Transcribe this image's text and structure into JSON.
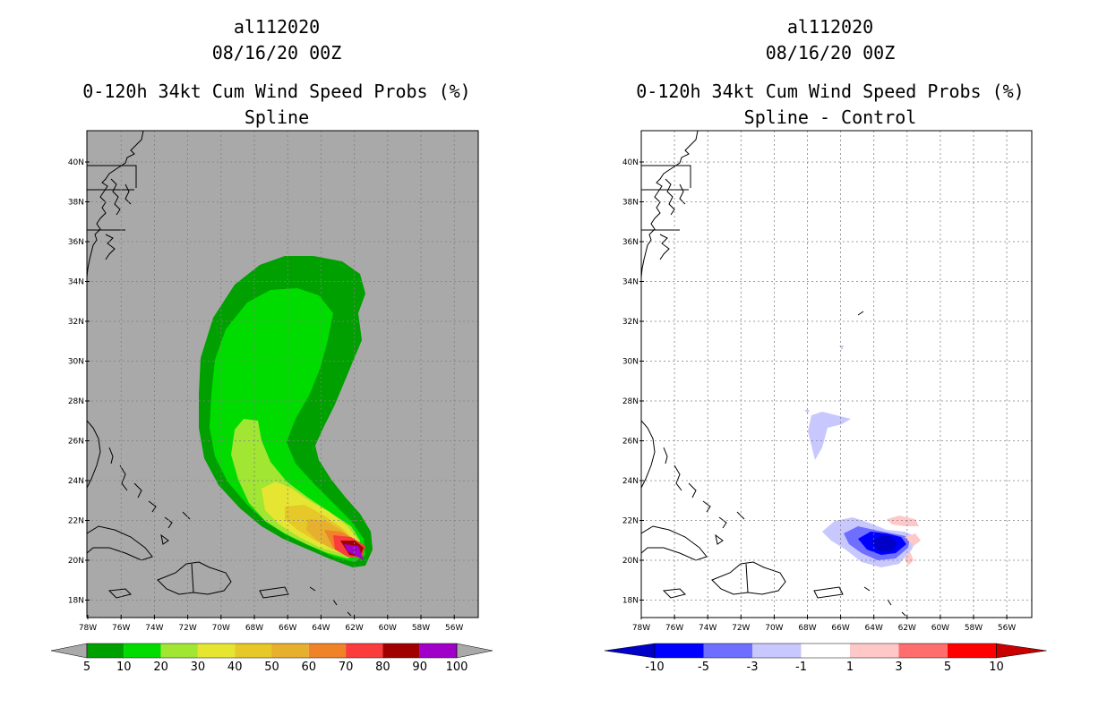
{
  "panels": [
    {
      "title_line1": "al112020",
      "title_line2": "08/16/20 00Z",
      "title_line3": "0-120h 34kt Cum Wind Speed Probs (%)",
      "title_line4": "Spline",
      "background_color": "#a9a9a9",
      "lat_labels": [
        "40N",
        "38N",
        "36N",
        "34N",
        "32N",
        "30N",
        "28N",
        "26N",
        "24N",
        "22N",
        "20N",
        "18N"
      ],
      "lon_labels": [
        "78W",
        "76W",
        "74W",
        "72W",
        "70W",
        "68W",
        "66W",
        "64W",
        "62W",
        "60W",
        "58W",
        "56W"
      ],
      "colorbar_labels": [
        "5",
        "10",
        "20",
        "30",
        "40",
        "50",
        "60",
        "70",
        "80",
        "90",
        "100"
      ],
      "colorbar_colors": [
        "#00a000",
        "#00dc00",
        "#a0e632",
        "#e6e632",
        "#e6c828",
        "#e6af2d",
        "#f08228",
        "#fa3c3c",
        "#a00000",
        "#a000c8"
      ]
    },
    {
      "title_line1": "al112020",
      "title_line2": "08/16/20 00Z",
      "title_line3": "0-120h 34kt Cum Wind Speed Probs (%)",
      "title_line4": "Spline - Control",
      "background_color": "#ffffff",
      "lat_labels": [
        "40N",
        "38N",
        "36N",
        "34N",
        "32N",
        "30N",
        "28N",
        "26N",
        "24N",
        "22N",
        "20N",
        "18N"
      ],
      "lon_labels": [
        "78W",
        "76W",
        "74W",
        "72W",
        "70W",
        "68W",
        "66W",
        "64W",
        "62W",
        "60W",
        "58W",
        "56W"
      ],
      "colorbar_labels": [
        "-10",
        "-5",
        "-3",
        "-1",
        "1",
        "3",
        "5",
        "10"
      ],
      "colorbar_colors": [
        "#0000c8",
        "#0000ff",
        "#6e6eff",
        "#c8c8ff",
        "#ffffff",
        "#ffc8c8",
        "#ff6e6e",
        "#ff0000",
        "#c80000"
      ]
    }
  ]
}
